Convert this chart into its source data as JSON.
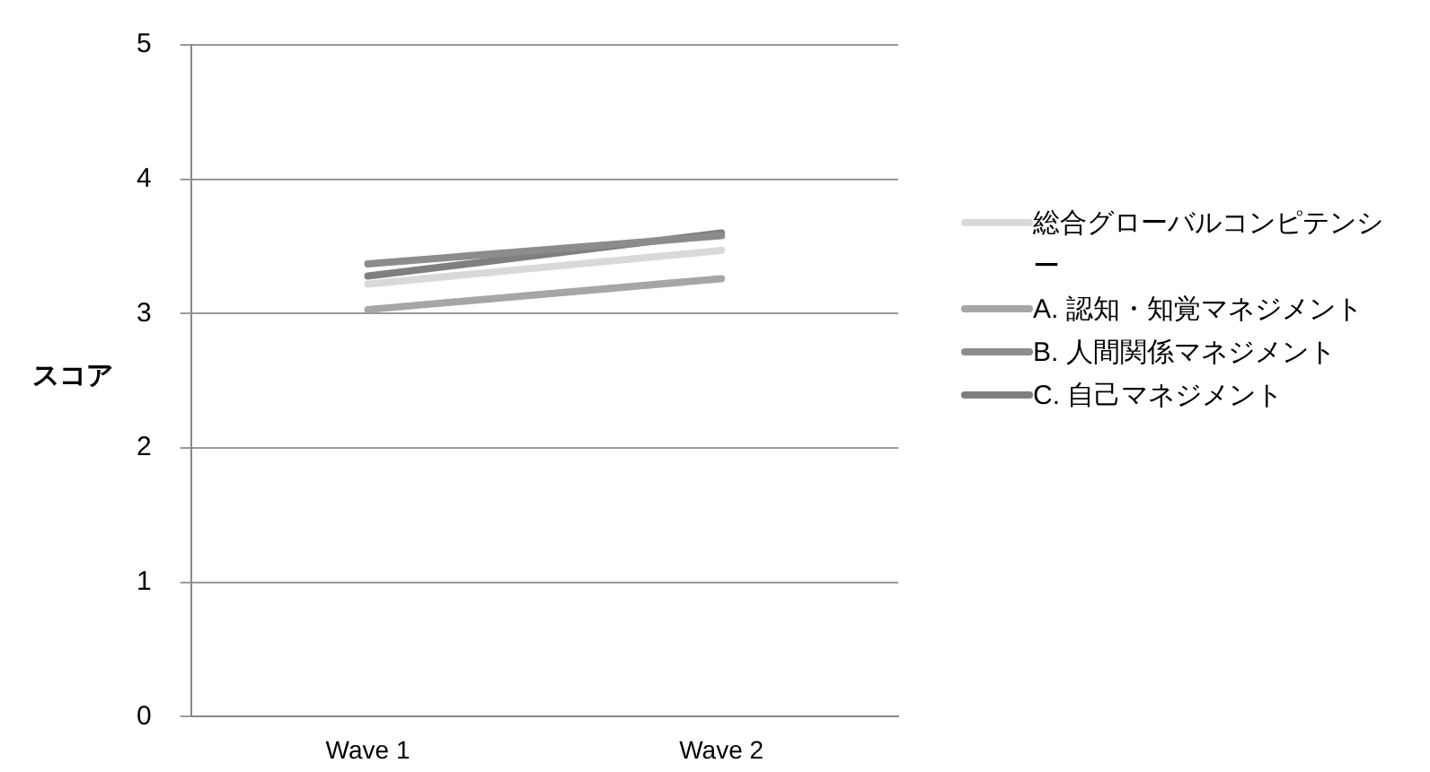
{
  "chart_data": {
    "type": "line",
    "ylabel": "スコア",
    "categories": [
      "Wave 1",
      "Wave 2"
    ],
    "series": [
      {
        "name": "総合グローバルコンピテンシー",
        "color": "#d9d9d9",
        "values": [
          3.22,
          3.47
        ]
      },
      {
        "name": "A. 認知・知覚マネジメント",
        "color": "#a6a6a6",
        "values": [
          3.03,
          3.26
        ]
      },
      {
        "name": "B. 人間関係マネジメント",
        "color": "#8c8c8c",
        "values": [
          3.37,
          3.58
        ]
      },
      {
        "name": "C. 自己マネジメント",
        "color": "#7f7f7f",
        "values": [
          3.28,
          3.6
        ]
      }
    ],
    "ylim": [
      0,
      5
    ],
    "yticks": [
      0,
      1,
      2,
      3,
      4,
      5
    ],
    "grid": "y",
    "legend": "right",
    "marker": "none",
    "line_style": "solid"
  }
}
